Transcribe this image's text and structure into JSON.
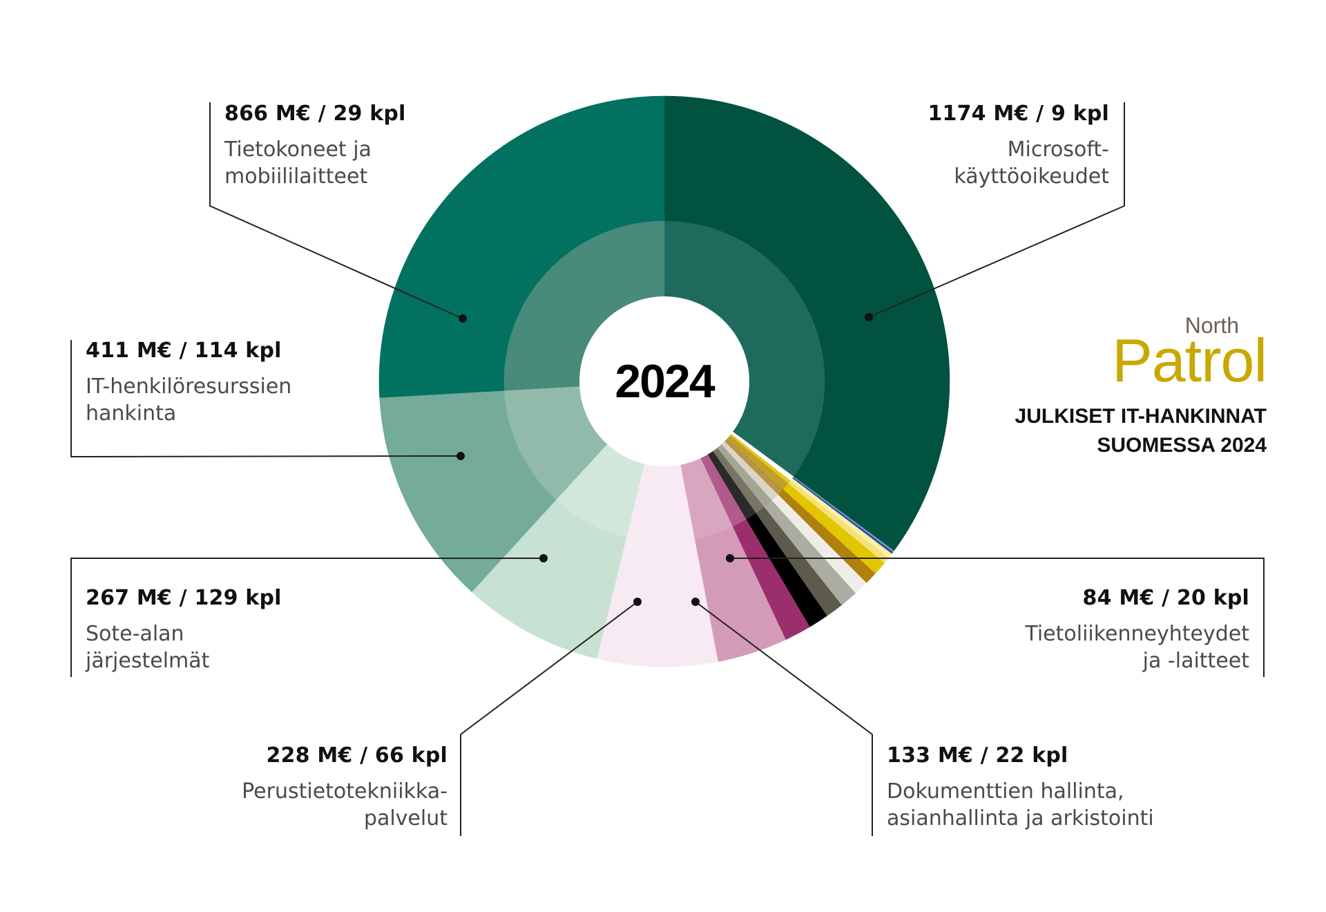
{
  "chart_data": {
    "type": "pie",
    "center_label": "2024",
    "outer_ring": [
      {
        "color": "#01523f",
        "value": 1174
      },
      {
        "color": "#7c9fd0",
        "value": 3
      },
      {
        "color": "#2b4fa1",
        "value": 4
      },
      {
        "color": "#fbf0a4",
        "value": 10
      },
      {
        "color": "#f3e27a",
        "value": 12
      },
      {
        "color": "#e2c600",
        "value": 26
      },
      {
        "color": "#b0810f",
        "value": 24
      },
      {
        "color": "#efede6",
        "value": 28
      },
      {
        "color": "#acaca2",
        "value": 34
      },
      {
        "color": "#5c5b4c",
        "value": 34
      },
      {
        "color": "#000000",
        "value": 38
      },
      {
        "color": "#9b2e6c",
        "value": 51
      },
      {
        "color": "#d49bb8",
        "value": 133
      },
      {
        "color": "#f7eaf2",
        "value": 228
      },
      {
        "color": "#c7e2d2",
        "value": 267
      },
      {
        "color": "#74ab9a",
        "value": 411
      },
      {
        "color": "#037160",
        "value": 866
      }
    ],
    "inner_ring": [
      {
        "color": "#1e6b5e",
        "value": 1174
      },
      {
        "color": "#ffffff",
        "value": 3
      },
      {
        "color": "#ffffff",
        "value": 4
      },
      {
        "color": "#ffffff",
        "value": 10
      },
      {
        "color": "#e3c81f",
        "value": 12
      },
      {
        "color": "#c1a02a",
        "value": 26
      },
      {
        "color": "#b79344",
        "value": 24
      },
      {
        "color": "#d9d6c9",
        "value": 28
      },
      {
        "color": "#a6a595",
        "value": 34
      },
      {
        "color": "#777664",
        "value": 34
      },
      {
        "color": "#2a2a2a",
        "value": 38
      },
      {
        "color": "#b15b8c",
        "value": 51
      },
      {
        "color": "#d9a6c0",
        "value": 133
      },
      {
        "color": "#f7eaf2",
        "value": 228
      },
      {
        "color": "#d2e7db",
        "value": 267
      },
      {
        "color": "#92baaa",
        "value": 411
      },
      {
        "color": "#488b7b",
        "value": 866
      }
    ]
  },
  "labels": [
    {
      "id": "microsoft",
      "value": "1174 M€ / 9 kpl",
      "category": "Microsoft-\nkäyttöoikeudet"
    },
    {
      "id": "tietokoneet",
      "value": "866 M€ / 29 kpl",
      "category": "Tietokoneet ja\nmobiililaitteet"
    },
    {
      "id": "it-henkilo",
      "value": "411 M€ / 114 kpl",
      "category": "IT-henkilöresurssien\nhankinta"
    },
    {
      "id": "sote",
      "value": "267 M€ / 129 kpl",
      "category": "Sote-alan\njärjestelmät"
    },
    {
      "id": "perustieto",
      "value": "228 M€ / 66 kpl",
      "category": "Perustietotekniikka-\npalvelut"
    },
    {
      "id": "dokumentti",
      "value": "133 M€ / 22 kpl",
      "category": "Dokumenttien hallinta,\nasianhallinta ja arkistointi"
    },
    {
      "id": "tietoliikenne",
      "value": "84 M€ / 20 kpl",
      "category": "Tietoliikenneyhteydet\nja -laitteet"
    }
  ],
  "brand": {
    "north": "North",
    "patrol": "Patrol"
  },
  "headline": "JULKISET IT-HANKINNAT\nSUOMESSA 2024"
}
